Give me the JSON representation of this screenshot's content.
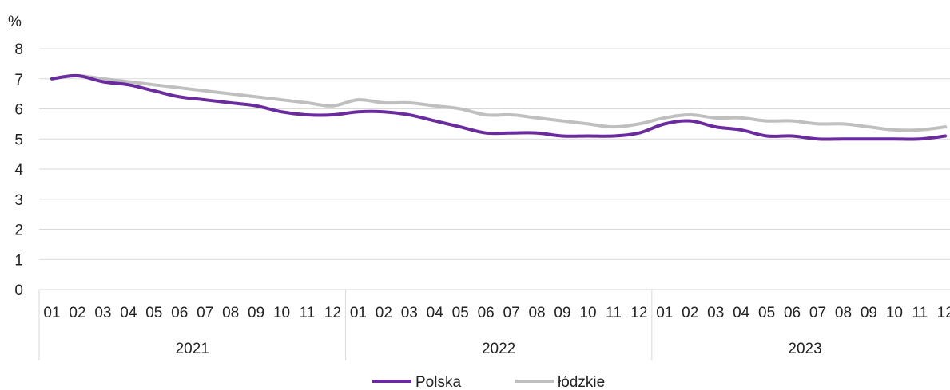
{
  "chart_data": {
    "type": "line",
    "y_unit": "%",
    "ylim": [
      0,
      8
    ],
    "y_ticks": [
      "0",
      "1",
      "2",
      "3",
      "4",
      "5",
      "6",
      "7",
      "8"
    ],
    "grid": true,
    "legend_position": "bottom",
    "month_labels": [
      "01",
      "02",
      "03",
      "04",
      "05",
      "06",
      "07",
      "08",
      "09",
      "10",
      "11",
      "12"
    ],
    "years": [
      "2021",
      "2022",
      "2023"
    ],
    "series": [
      {
        "name": "Polska",
        "color": "#6a2b9e",
        "values": [
          7.0,
          7.1,
          6.9,
          6.8,
          6.6,
          6.4,
          6.3,
          6.2,
          6.1,
          5.9,
          5.8,
          5.8,
          5.9,
          5.9,
          5.8,
          5.6,
          5.4,
          5.2,
          5.2,
          5.2,
          5.1,
          5.1,
          5.1,
          5.2,
          5.5,
          5.6,
          5.4,
          5.3,
          5.1,
          5.1,
          5.0,
          5.0,
          5.0,
          5.0,
          5.0,
          5.1
        ]
      },
      {
        "name": "łódzkie",
        "color": "#bfbfbf",
        "values": [
          7.0,
          7.1,
          7.0,
          6.9,
          6.8,
          6.7,
          6.6,
          6.5,
          6.4,
          6.3,
          6.2,
          6.1,
          6.3,
          6.2,
          6.2,
          6.1,
          6.0,
          5.8,
          5.8,
          5.7,
          5.6,
          5.5,
          5.4,
          5.5,
          5.7,
          5.8,
          5.7,
          5.7,
          5.6,
          5.6,
          5.5,
          5.5,
          5.4,
          5.3,
          5.3,
          5.4
        ]
      }
    ]
  }
}
